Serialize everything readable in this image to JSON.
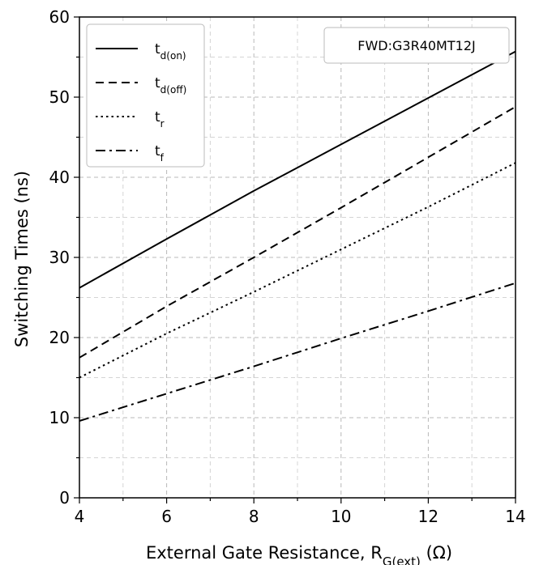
{
  "chart_data": {
    "type": "line",
    "title": "",
    "xlabel": {
      "main": "External Gate Resistance, R",
      "sub": "G(ext)",
      "unit": " (Ω)"
    },
    "ylabel": "Switching Times (ns)",
    "xlim": [
      4,
      14
    ],
    "ylim": [
      0,
      60
    ],
    "x_ticks": [
      "4",
      "6",
      "8",
      "10",
      "12",
      "14"
    ],
    "y_ticks": [
      "0",
      "10",
      "20",
      "30",
      "40",
      "50",
      "60"
    ],
    "grid": true,
    "grid_style": "dashed",
    "legend_position": "top-left",
    "annotation": "FWD:G3R40MT12J",
    "series": [
      {
        "name": "t",
        "sub": "d(on)",
        "dash": "solid",
        "x": [
          4,
          6,
          8,
          10,
          12,
          14
        ],
        "values": [
          26.2,
          32.3,
          38.3,
          44.1,
          49.9,
          55.7
        ]
      },
      {
        "name": "t",
        "sub": "d(off)",
        "dash": "dashed",
        "x": [
          4,
          6,
          8,
          10,
          12,
          14
        ],
        "values": [
          17.5,
          23.9,
          30.0,
          36.2,
          42.5,
          48.8
        ]
      },
      {
        "name": "t",
        "sub": "r",
        "dash": "dotted",
        "x": [
          4,
          6,
          8,
          10,
          12,
          14
        ],
        "values": [
          15.0,
          20.5,
          25.7,
          31.0,
          36.3,
          41.8
        ]
      },
      {
        "name": "t",
        "sub": "f",
        "dash": "dashdot",
        "x": [
          4,
          6,
          8,
          10,
          12,
          14
        ],
        "values": [
          9.6,
          13.0,
          16.4,
          19.9,
          23.3,
          26.8
        ]
      }
    ]
  }
}
